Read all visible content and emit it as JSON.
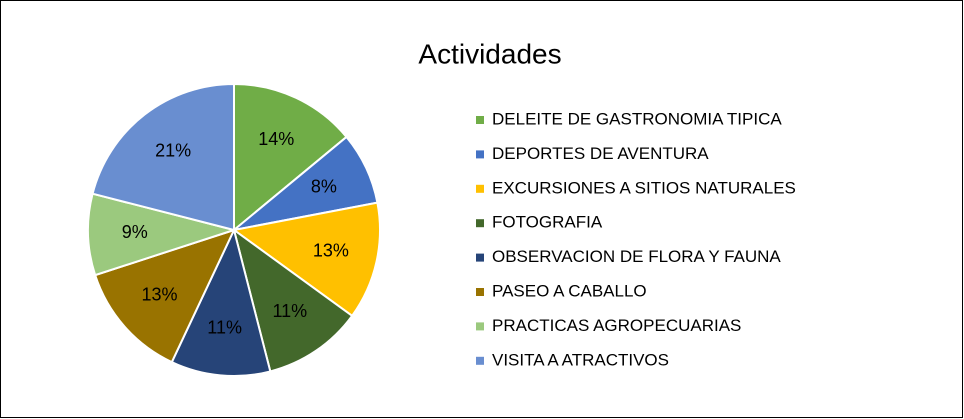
{
  "chart_data": {
    "type": "pie",
    "title": "Actividades",
    "categories": [
      "DELEITE DE GASTRONOMIA TIPICA",
      "DEPORTES DE AVENTURA",
      "EXCURSIONES A SITIOS NATURALES",
      "FOTOGRAFIA",
      "OBSERVACION DE FLORA Y FAUNA",
      "PASEO A CABALLO",
      "PRACTICAS AGROPECUARIAS",
      "VISITA A ATRACTIVOS"
    ],
    "values": [
      14,
      8,
      13,
      11,
      11,
      13,
      9,
      21
    ],
    "value_labels": [
      "14%",
      "8%",
      "13%",
      "11%",
      "11%",
      "13%",
      "9%",
      "21%"
    ],
    "colors": [
      "#70ad47",
      "#4472c4",
      "#ffc000",
      "#43682b",
      "#264478",
      "#997300",
      "#9bc97e",
      "#698ed0"
    ],
    "legend": "right"
  }
}
